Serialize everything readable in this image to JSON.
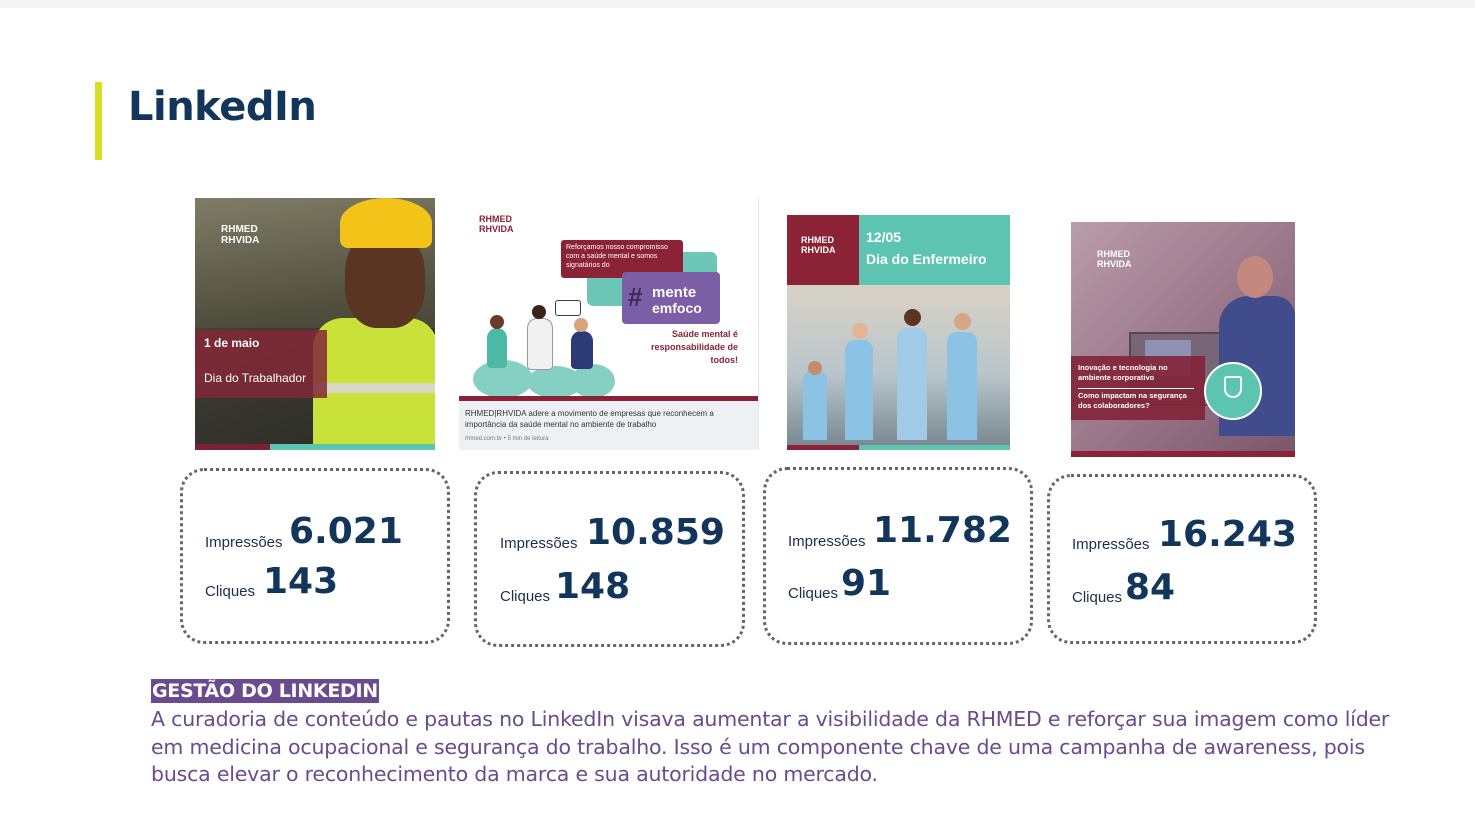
{
  "page": {
    "title": "LinkedIn",
    "accent_color": "#d7df23",
    "title_color": "#12355b"
  },
  "posts": [
    {
      "logo_line1": "RHMED",
      "logo_line2": "RHVIDA",
      "date": "1 de maio",
      "text": "Dia do Trabalhador"
    },
    {
      "logo_line1": "RHMED",
      "logo_line2": "RHVIDA",
      "box_text": "Reforçamos nosso compromisso com a saúde mental e somos signatários do",
      "hash": "#",
      "word1": "mente",
      "word2": "emfoco",
      "highlight": "Saúde mental é responsabilidade de todos!",
      "caption": "RHMED|RHVIDA adere a movimento de empresas que reconhecem a importância da saúde mental no ambiente de trabalho",
      "meta": "rhmed.com.br • 5 min de leitura"
    },
    {
      "logo_line1": "RHMED",
      "logo_line2": "RHVIDA",
      "date": "12/05",
      "text": "Dia do Enfermeiro"
    },
    {
      "logo_line1": "RHMED",
      "logo_line2": "RHVIDA",
      "text1": "Inovação e tecnologia no ambiente corporativo",
      "text2": "Como impactam na segurança dos colaboradores?"
    }
  ],
  "stats": [
    {
      "impressions_label": "Impressões",
      "impressions": "6.021",
      "clicks_label": "Cliques",
      "clicks": "143"
    },
    {
      "impressions_label": "Impressões",
      "impressions": "10.859",
      "clicks_label": "Cliques",
      "clicks": "148"
    },
    {
      "impressions_label": "Impressões",
      "impressions": "11.782",
      "clicks_label": "Cliques",
      "clicks": "91"
    },
    {
      "impressions_label": "Impressões",
      "impressions": "16.243",
      "clicks_label": "Cliques",
      "clicks": "84"
    }
  ],
  "section": {
    "label": "GESTÃO DO LINKEDIN",
    "label_bg": "#6b4b8f",
    "body": "A curadoria de conteúdo e pautas no LinkedIn visava aumentar a visibilidade da RHMED e reforçar sua imagem como líder em medicina ocupacional e segurança do trabalho. Isso é um componente chave de uma campanha de awareness, pois busca elevar o reconhecimento da marca e sua autoridade no mercado."
  },
  "icons": {
    "post4_badge": "shield-lock-icon",
    "post2_chat": "speech-bubble-icon"
  }
}
